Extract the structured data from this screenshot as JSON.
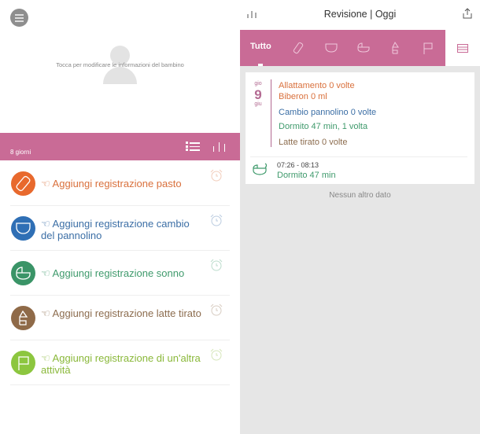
{
  "left": {
    "profile_hint": "Tocca per modificare le informazioni del bambino",
    "days_label": "8 giorni",
    "rows": [
      {
        "label": "☜ Aggiungi registrazione pasto",
        "color": "#d9703c",
        "icon_color": "#e8692d",
        "icon": "bottle-icon"
      },
      {
        "label": "☜ Aggiungi registrazione cambio del pannolino",
        "color": "#3b6ea5",
        "icon_color": "#2f6fb5",
        "icon": "diaper-icon"
      },
      {
        "label": "☜ Aggiungi registrazione sonno",
        "color": "#3f9a6c",
        "icon_color": "#3a9467",
        "icon": "crib-icon"
      },
      {
        "label": "☜ Aggiungi registrazione latte tirato",
        "color": "#8c6c4e",
        "icon_color": "#8f6a48",
        "icon": "breast-pump-icon"
      },
      {
        "label": "☜ Aggiungi registrazione di un'altra attività",
        "color": "#8ab83a",
        "icon_color": "#8cc63f",
        "icon": "flag-icon"
      }
    ]
  },
  "right": {
    "title": "Revisione | Oggi",
    "tab_all": "Tutto",
    "card": {
      "weekday": "gio",
      "day": "9",
      "month": "giu",
      "summary": [
        {
          "text": "Allattamento  0 volte",
          "color": "#d9703c"
        },
        {
          "text": "Biberon 0 ml",
          "color": "#d9703c"
        },
        {
          "text": "Cambio pannolino 0 volte",
          "color": "#3b6ea5"
        },
        {
          "text": "Dormito 47 min,  1 volta",
          "color": "#3f9a6c"
        },
        {
          "text": "Latte tirato 0 volte",
          "color": "#8c6c4e"
        }
      ],
      "event_time": "07:26 - 08:13",
      "event_label": "Dormito 47 min"
    },
    "no_more": "Nessun altro dato"
  },
  "colors": {
    "accent": "#c96b96"
  }
}
